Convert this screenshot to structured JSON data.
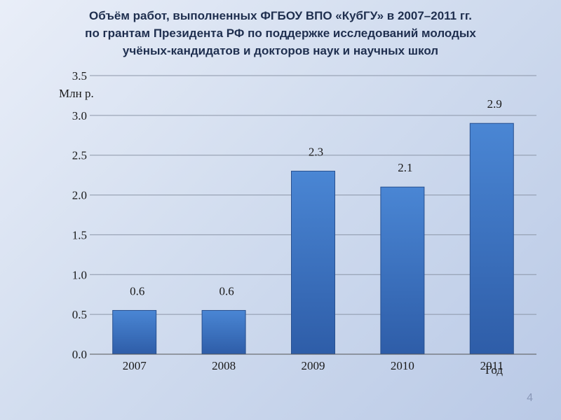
{
  "slide": {
    "title_lines": [
      "Объём работ, выполненных ФГБОУ ВПО «КубГУ» в 2007–2011 гг.",
      "по грантам Президента РФ по поддержке исследований молодых",
      "учёных-кандидатов и докторов наук и научных школ"
    ],
    "page_number": "4"
  },
  "chart_data": {
    "type": "bar",
    "categories": [
      "2007",
      "2008",
      "2009",
      "2010",
      "2011"
    ],
    "values": [
      0.55,
      0.55,
      2.3,
      2.1,
      2.9
    ],
    "data_labels": [
      "0.6",
      "0.6",
      "2.3",
      "2.1",
      "2.9"
    ],
    "yticks": [
      "0.0",
      "0.5",
      "1.0",
      "1.5",
      "2.0",
      "2.5",
      "3.0",
      "3.5"
    ],
    "ylim": [
      0,
      3.5
    ],
    "ylabel": "Млн р.",
    "xlabel": "Год",
    "grid": true,
    "colors": {
      "bar_top": "#4a86d4",
      "bar_bottom": "#2e5da8",
      "bar_stroke": "#28508f",
      "grid": "#8c96a8"
    }
  }
}
